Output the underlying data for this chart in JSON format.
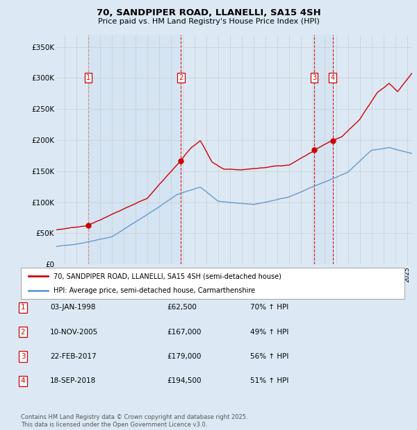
{
  "title": "70, SANDPIPER ROAD, LLANELLI, SA15 4SH",
  "subtitle": "Price paid vs. HM Land Registry's House Price Index (HPI)",
  "background_color": "#dce9f5",
  "ylim": [
    0,
    370000
  ],
  "yticks": [
    0,
    50000,
    100000,
    150000,
    200000,
    250000,
    300000,
    350000
  ],
  "ytick_labels": [
    "£0",
    "£50K",
    "£100K",
    "£150K",
    "£200K",
    "£250K",
    "£300K",
    "£350K"
  ],
  "xlim_start": 1995.3,
  "xlim_end": 2025.5,
  "transactions": [
    {
      "num": 1,
      "date": "03-JAN-1998",
      "year": 1998.01,
      "price": 62500
    },
    {
      "num": 2,
      "date": "10-NOV-2005",
      "year": 2005.86,
      "price": 167000
    },
    {
      "num": 3,
      "date": "22-FEB-2017",
      "year": 2017.14,
      "price": 179000
    },
    {
      "num": 4,
      "date": "18-SEP-2018",
      "year": 2018.71,
      "price": 194500
    }
  ],
  "legend_label_red": "70, SANDPIPER ROAD, LLANELLI, SA15 4SH (semi-detached house)",
  "legend_label_blue": "HPI: Average price, semi-detached house, Carmarthenshire",
  "footer": "Contains HM Land Registry data © Crown copyright and database right 2025.\nThis data is licensed under the Open Government Licence v3.0.",
  "red_color": "#cc0000",
  "blue_color": "#6699cc",
  "marker_box_color": "#cc0000",
  "vline_color": "#cc0000",
  "grid_color": "#cccccc",
  "shade_color": "#d0e4f5",
  "label_table": [
    {
      "num": "1",
      "date": "03-JAN-1998",
      "price": "£62,500",
      "hpi": "70% ↑ HPI"
    },
    {
      "num": "2",
      "date": "10-NOV-2005",
      "price": "£167,000",
      "hpi": "49% ↑ HPI"
    },
    {
      "num": "3",
      "date": "22-FEB-2017",
      "price": "£179,000",
      "hpi": "56% ↑ HPI"
    },
    {
      "num": "4",
      "date": "18-SEP-2018",
      "price": "£194,500",
      "hpi": "51% ↑ HPI"
    }
  ]
}
